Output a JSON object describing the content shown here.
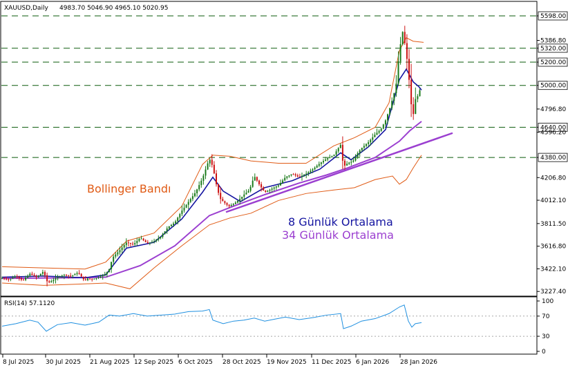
{
  "header": {
    "symbol": "XAUUSD,Daily",
    "ohlc": "4983.70 5046.90 4965.10 5020.95"
  },
  "rsi_header": "RSI(14) 57.1120",
  "annotations": {
    "bollinger": "Bollinger Bandı",
    "ma8": "8 Günlük Ortalama",
    "ma34": "34 Günlük Ortalama"
  },
  "colors": {
    "bull": "#1a7a1a",
    "bear": "#cc1111",
    "ma8": "#1414a0",
    "ma34": "#9b3fd0",
    "bollinger": "#e05a14",
    "levels": "#0a5a0a",
    "rsi": "#1e8fe0",
    "trend": "#9b3fd0"
  },
  "chart_data": [
    {
      "type": "candlestick",
      "title": "",
      "x_ticks": [
        "8 Jul 2025",
        "30 Jul 2025",
        "21 Aug 2025",
        "12 Sep 2025",
        "6 Oct 2025",
        "28 Oct 2025",
        "19 Nov 2025",
        "11 Dec 2025",
        "6 Jan 2026",
        "28 Jan 2026"
      ],
      "y_ticks": [
        "5598.00",
        "5386.80",
        "5320.00",
        "5200.00",
        "5000.00",
        "4796.80",
        "4640.00",
        "4596.20",
        "4380.00",
        "4206.80",
        "4012.10",
        "3811.50",
        "3616.80",
        "3422.10",
        "3227.40"
      ],
      "ylim": [
        3150,
        5640
      ],
      "horizontal_levels": [
        5598,
        5320,
        5200,
        5000,
        4640,
        4380
      ],
      "highlighted_labels": [
        "5598.00",
        "5320.00",
        "5200.00",
        "5000.00",
        "4640.00",
        "4380.00"
      ],
      "close_path": [
        [
          0,
          3340
        ],
        [
          10,
          3330
        ],
        [
          20,
          3360
        ],
        [
          30,
          3320
        ],
        [
          40,
          3380
        ],
        [
          50,
          3350
        ],
        [
          60,
          3400
        ],
        [
          66,
          3300
        ],
        [
          70,
          3310
        ],
        [
          80,
          3350
        ],
        [
          90,
          3370
        ],
        [
          100,
          3360
        ],
        [
          110,
          3390
        ],
        [
          118,
          3330
        ],
        [
          120,
          3320
        ],
        [
          124,
          3340
        ],
        [
          130,
          3330
        ],
        [
          140,
          3350
        ],
        [
          150,
          3380
        ],
        [
          155,
          3420
        ],
        [
          160,
          3520
        ],
        [
          170,
          3580
        ],
        [
          180,
          3650
        ],
        [
          190,
          3630
        ],
        [
          200,
          3690
        ],
        [
          210,
          3640
        ],
        [
          220,
          3660
        ],
        [
          230,
          3700
        ],
        [
          240,
          3780
        ],
        [
          250,
          3820
        ],
        [
          260,
          3920
        ],
        [
          270,
          4000
        ],
        [
          280,
          4080
        ],
        [
          290,
          4200
        ],
        [
          300,
          4370
        ],
        [
          305,
          4300
        ],
        [
          310,
          4150
        ],
        [
          315,
          4030
        ],
        [
          320,
          4000
        ],
        [
          328,
          3960
        ],
        [
          335,
          3980
        ],
        [
          342,
          4010
        ],
        [
          350,
          4060
        ],
        [
          358,
          4100
        ],
        [
          365,
          4220
        ],
        [
          372,
          4150
        ],
        [
          380,
          4080
        ],
        [
          390,
          4110
        ],
        [
          400,
          4140
        ],
        [
          410,
          4210
        ],
        [
          420,
          4240
        ],
        [
          430,
          4210
        ],
        [
          440,
          4240
        ],
        [
          450,
          4280
        ],
        [
          460,
          4330
        ],
        [
          470,
          4370
        ],
        [
          480,
          4400
        ],
        [
          490,
          4490
        ],
        [
          494,
          4300
        ],
        [
          500,
          4330
        ],
        [
          508,
          4350
        ],
        [
          515,
          4420
        ],
        [
          520,
          4460
        ],
        [
          530,
          4510
        ],
        [
          540,
          4580
        ],
        [
          548,
          4620
        ],
        [
          555,
          4700
        ],
        [
          562,
          4820
        ],
        [
          570,
          4990
        ],
        [
          575,
          5300
        ],
        [
          580,
          5470
        ],
        [
          585,
          5280
        ],
        [
          590,
          4990
        ],
        [
          594,
          4700
        ],
        [
          598,
          4880
        ],
        [
          603,
          4920
        ],
        [
          607,
          5020
        ]
      ],
      "series": [
        {
          "name": "8 Günlük Ortalama",
          "type": "line",
          "points": [
            [
              0,
              3350
            ],
            [
              60,
              3360
            ],
            [
              120,
              3345
            ],
            [
              150,
              3370
            ],
            [
              180,
              3600
            ],
            [
              220,
              3650
            ],
            [
              260,
              3850
            ],
            [
              290,
              4080
            ],
            [
              305,
              4210
            ],
            [
              320,
              4090
            ],
            [
              345,
              4000
            ],
            [
              380,
              4120
            ],
            [
              420,
              4180
            ],
            [
              460,
              4280
            ],
            [
              490,
              4420
            ],
            [
              505,
              4360
            ],
            [
              530,
              4470
            ],
            [
              555,
              4620
            ],
            [
              575,
              5050
            ],
            [
              585,
              5140
            ],
            [
              595,
              5030
            ],
            [
              603,
              4990
            ],
            [
              607,
              4960
            ]
          ]
        },
        {
          "name": "34 Günlük Ortalama",
          "type": "line",
          "points": [
            [
              0,
              3340
            ],
            [
              100,
              3345
            ],
            [
              150,
              3350
            ],
            [
              200,
              3450
            ],
            [
              250,
              3620
            ],
            [
              300,
              3880
            ],
            [
              330,
              3950
            ],
            [
              380,
              4060
            ],
            [
              430,
              4160
            ],
            [
              470,
              4230
            ],
            [
              500,
              4290
            ],
            [
              540,
              4380
            ],
            [
              575,
              4520
            ],
            [
              590,
              4610
            ],
            [
              607,
              4690
            ]
          ]
        },
        {
          "name": "bollinger_upper",
          "type": "line",
          "points": [
            [
              0,
              3440
            ],
            [
              60,
              3430
            ],
            [
              120,
              3420
            ],
            [
              150,
              3480
            ],
            [
              180,
              3660
            ],
            [
              220,
              3730
            ],
            [
              260,
              3960
            ],
            [
              290,
              4320
            ],
            [
              305,
              4400
            ],
            [
              330,
              4390
            ],
            [
              360,
              4350
            ],
            [
              400,
              4330
            ],
            [
              440,
              4330
            ],
            [
              480,
              4480
            ],
            [
              510,
              4550
            ],
            [
              540,
              4640
            ],
            [
              560,
              4850
            ],
            [
              575,
              5300
            ],
            [
              585,
              5410
            ],
            [
              595,
              5380
            ],
            [
              610,
              5370
            ]
          ]
        },
        {
          "name": "bollinger_lower",
          "type": "line",
          "points": [
            [
              0,
              3300
            ],
            [
              60,
              3280
            ],
            [
              110,
              3290
            ],
            [
              150,
              3300
            ],
            [
              185,
              3250
            ],
            [
              220,
              3430
            ],
            [
              260,
              3620
            ],
            [
              300,
              3800
            ],
            [
              330,
              3860
            ],
            [
              360,
              3900
            ],
            [
              400,
              4010
            ],
            [
              440,
              4070
            ],
            [
              480,
              4100
            ],
            [
              510,
              4120
            ],
            [
              540,
              4190
            ],
            [
              565,
              4220
            ],
            [
              575,
              4150
            ],
            [
              585,
              4190
            ],
            [
              595,
              4290
            ],
            [
              607,
              4400
            ]
          ]
        },
        {
          "name": "trendline",
          "type": "line",
          "points": [
            [
              324,
              3910
            ],
            [
              652,
              4590
            ]
          ]
        }
      ]
    },
    {
      "type": "line",
      "title": "",
      "y_ticks": [
        "100",
        "70",
        "30",
        "0"
      ],
      "ylim": [
        0,
        100
      ],
      "levels": [
        70,
        30
      ],
      "series": [
        {
          "name": "RSI(14)",
          "points": [
            [
              0,
              50
            ],
            [
              20,
              55
            ],
            [
              40,
              62
            ],
            [
              52,
              58
            ],
            [
              64,
              40
            ],
            [
              80,
              53
            ],
            [
              100,
              57
            ],
            [
              120,
              52
            ],
            [
              140,
              58
            ],
            [
              155,
              72
            ],
            [
              170,
              70
            ],
            [
              190,
              75
            ],
            [
              210,
              70
            ],
            [
              230,
              72
            ],
            [
              250,
              74
            ],
            [
              270,
              79
            ],
            [
              290,
              80
            ],
            [
              300,
              83
            ],
            [
              305,
              62
            ],
            [
              320,
              55
            ],
            [
              335,
              60
            ],
            [
              350,
              62
            ],
            [
              365,
              66
            ],
            [
              380,
              60
            ],
            [
              395,
              64
            ],
            [
              410,
              68
            ],
            [
              430,
              63
            ],
            [
              450,
              67
            ],
            [
              470,
              72
            ],
            [
              490,
              75
            ],
            [
              494,
              45
            ],
            [
              505,
              50
            ],
            [
              520,
              60
            ],
            [
              540,
              65
            ],
            [
              560,
              75
            ],
            [
              575,
              88
            ],
            [
              582,
              92
            ],
            [
              588,
              60
            ],
            [
              593,
              48
            ],
            [
              598,
              55
            ],
            [
              607,
              57
            ]
          ]
        }
      ]
    }
  ]
}
